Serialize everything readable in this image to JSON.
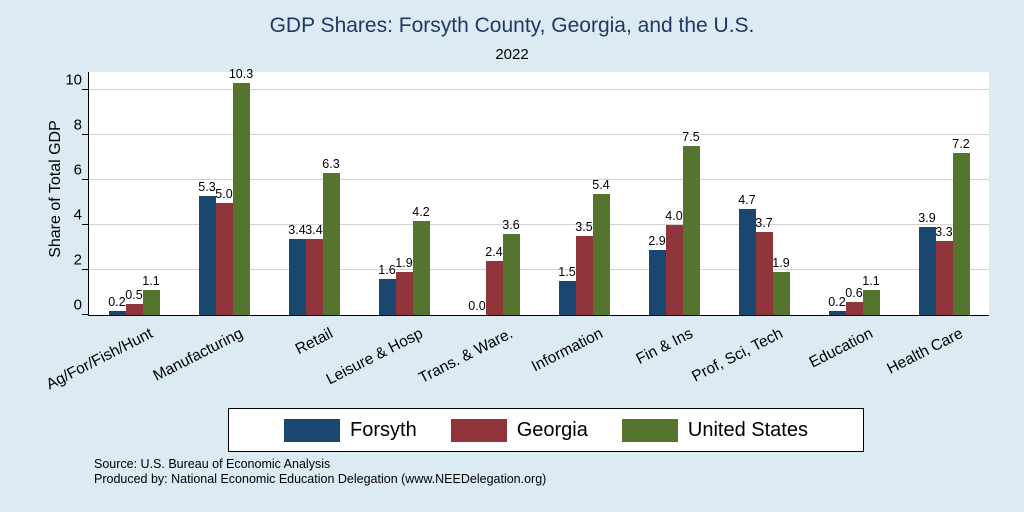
{
  "chart_data": {
    "type": "bar",
    "title": "GDP Shares: Forsyth County, Georgia, and the U.S.",
    "subtitle": "2022",
    "ylabel": "Share of Total GDP",
    "ylim": [
      0,
      10.8
    ],
    "yticks": [
      0,
      2,
      4,
      6,
      8,
      10
    ],
    "grid": true,
    "legend_position": "bottom",
    "categories": [
      "Ag/For/Fish/Hunt",
      "Manufacturing",
      "Retail",
      "Leisure & Hosp",
      "Trans. & Ware.",
      "Information",
      "Fin & Ins",
      "Prof, Sci, Tech",
      "Education",
      "Health Care"
    ],
    "series": [
      {
        "name": "Forsyth",
        "color": "#1a476f",
        "values": [
          0.2,
          5.3,
          3.4,
          1.6,
          0.0,
          1.5,
          2.9,
          4.7,
          0.2,
          3.9
        ]
      },
      {
        "name": "Georgia",
        "color": "#90353b",
        "values": [
          0.5,
          5.0,
          3.4,
          1.9,
          2.4,
          3.5,
          4.0,
          3.7,
          0.6,
          3.3
        ]
      },
      {
        "name": "United States",
        "color": "#55752f",
        "values": [
          1.1,
          10.3,
          6.3,
          4.2,
          3.6,
          5.4,
          7.5,
          1.9,
          1.1,
          7.2
        ]
      }
    ]
  },
  "colors": {
    "title": "#1f3864",
    "background": "#dceaf3",
    "plot_background": "#ffffff"
  },
  "source": {
    "line1": "Source: U.S. Bureau of Economic Analysis",
    "line2": "Produced by: National Economic Education Delegation (www.NEEDelegation.org)"
  }
}
